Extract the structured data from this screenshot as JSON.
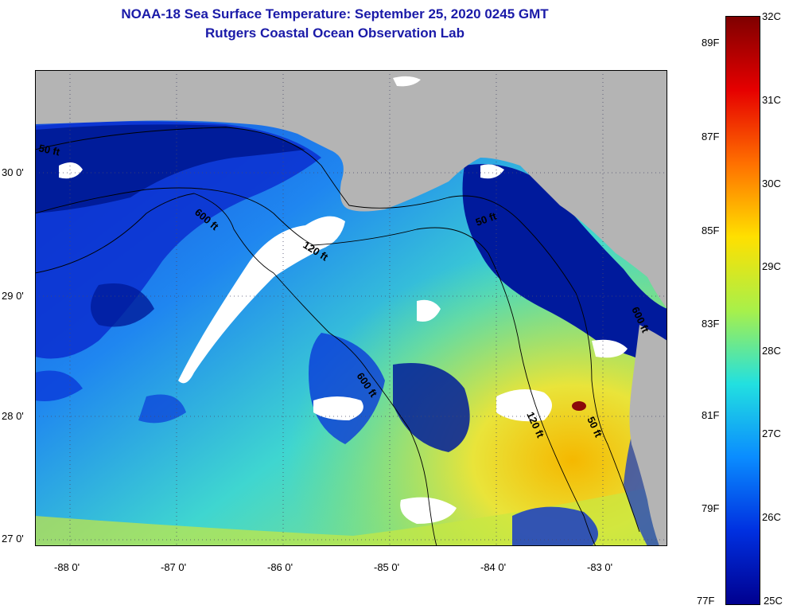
{
  "header": {
    "title": "NOAA-18 Sea Surface Temperature:  September 25, 2020 0245 GMT",
    "subtitle": "Rutgers Coastal Ocean Observation Lab"
  },
  "map": {
    "lat_labels": [
      "30 0'",
      "29 0'",
      "28 0'",
      "27 0'"
    ],
    "lon_labels": [
      "-88 0'",
      "-87 0'",
      "-86 0'",
      "-85 0'",
      "-84 0'",
      "-83 0'"
    ],
    "contour_labels": [
      "50 ft",
      "600 ft",
      "120 ft",
      "600 ft",
      "50 ft",
      "120 ft",
      "50 ft",
      "600 ft"
    ],
    "colors": {
      "land": "#b4b4b4",
      "cloud": "#ffffff",
      "cold": "#00008c",
      "warm": "#ffe400"
    }
  },
  "colorbar": {
    "celsius_labels": [
      "32C",
      "31C",
      "30C",
      "29C",
      "28C",
      "27C",
      "26C",
      "25C"
    ],
    "fahrenheit_labels": [
      "89F",
      "87F",
      "85F",
      "83F",
      "81F",
      "79F",
      "77F"
    ],
    "gradient_stops": [
      "#7f0000",
      "#e60000",
      "#ff7000",
      "#ffe000",
      "#a8f04a",
      "#22e0e0",
      "#0a8cff",
      "#0030e0",
      "#00008f"
    ]
  }
}
